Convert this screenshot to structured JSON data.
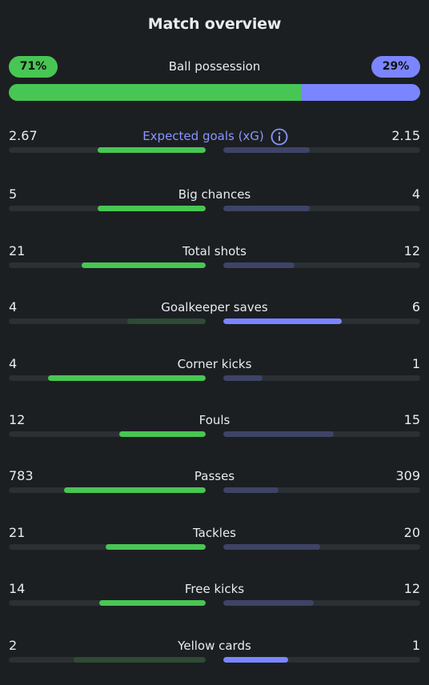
{
  "title": "Match overview",
  "colors": {
    "home_strong": "#48c653",
    "home_weak": "#2f4a35",
    "away_strong": "#7b85ff",
    "away_weak": "#3e4466",
    "track": "#2b3034",
    "accent": "#8b95ff"
  },
  "possession": {
    "label": "Ball possession",
    "home": 71,
    "away": 29,
    "home_text": "71%",
    "away_text": "29%"
  },
  "stats": [
    {
      "label": "Expected goals (xG)",
      "home": "2.67",
      "away": "2.15",
      "home_val": 2.67,
      "away_val": 2.15,
      "home_fill": 0.55,
      "away_fill": 0.44,
      "winner": "home",
      "info": true
    },
    {
      "label": "Big chances",
      "home": "5",
      "away": "4",
      "home_val": 5,
      "away_val": 4,
      "home_fill": 0.55,
      "away_fill": 0.44,
      "winner": "home"
    },
    {
      "label": "Total shots",
      "home": "21",
      "away": "12",
      "home_val": 21,
      "away_val": 12,
      "home_fill": 0.63,
      "away_fill": 0.36,
      "winner": "home"
    },
    {
      "label": "Goalkeeper saves",
      "home": "4",
      "away": "6",
      "home_val": 4,
      "away_val": 6,
      "home_fill": 0.4,
      "away_fill": 0.6,
      "winner": "away"
    },
    {
      "label": "Corner kicks",
      "home": "4",
      "away": "1",
      "home_val": 4,
      "away_val": 1,
      "home_fill": 0.8,
      "away_fill": 0.2,
      "winner": "home"
    },
    {
      "label": "Fouls",
      "home": "12",
      "away": "15",
      "home_val": 12,
      "away_val": 15,
      "home_fill": 0.44,
      "away_fill": 0.56,
      "winner": "home"
    },
    {
      "label": "Passes",
      "home": "783",
      "away": "309",
      "home_val": 783,
      "away_val": 309,
      "home_fill": 0.72,
      "away_fill": 0.28,
      "winner": "home"
    },
    {
      "label": "Tackles",
      "home": "21",
      "away": "20",
      "home_val": 21,
      "away_val": 20,
      "home_fill": 0.51,
      "away_fill": 0.49,
      "winner": "home"
    },
    {
      "label": "Free kicks",
      "home": "14",
      "away": "12",
      "home_val": 14,
      "away_val": 12,
      "home_fill": 0.54,
      "away_fill": 0.46,
      "winner": "home"
    },
    {
      "label": "Yellow cards",
      "home": "2",
      "away": "1",
      "home_val": 2,
      "away_val": 1,
      "home_fill": 0.67,
      "away_fill": 0.33,
      "winner": "away"
    }
  ]
}
